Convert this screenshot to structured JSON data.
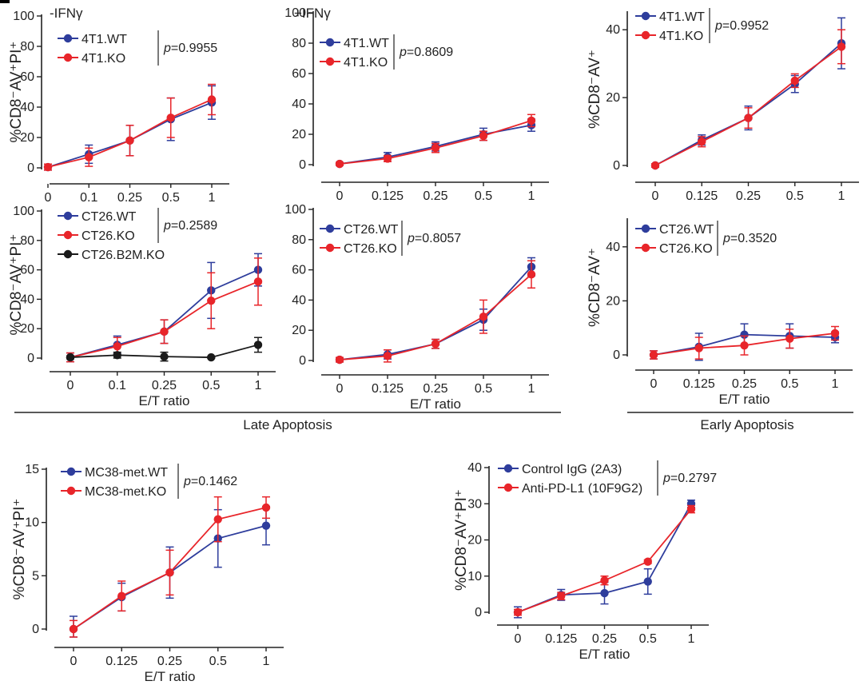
{
  "figure": {
    "group_labels": {
      "late": "Late Apoptosis",
      "early": "Early Apoptosis"
    }
  },
  "colors": {
    "blue": "#2e3d9c",
    "red": "#e8252a",
    "black": "#1a1a1a"
  },
  "chart_data": [
    {
      "id": "p1",
      "type": "line",
      "title": "-IFNγ",
      "ylabel": "%CD8⁻AV⁺PI⁺",
      "categories": [
        "0",
        "0.1",
        "0.25",
        "0.5",
        "1"
      ],
      "ylim": [
        0,
        100
      ],
      "yticks": [
        0,
        20,
        40,
        60,
        80,
        100
      ],
      "pvalue": "=0.9955",
      "xlabel": "",
      "series": [
        {
          "name": "4T1.WT",
          "color": "blue",
          "values": [
            0.5,
            9,
            18,
            32,
            43
          ],
          "err": [
            2,
            6,
            10,
            14,
            11
          ]
        },
        {
          "name": "4T1.KO",
          "color": "red",
          "values": [
            0.5,
            7,
            18,
            33,
            45
          ],
          "err": [
            2,
            6,
            10,
            13,
            10
          ]
        }
      ]
    },
    {
      "id": "p2",
      "type": "line",
      "title": "+IFNγ",
      "ylabel": "",
      "categories": [
        "0",
        "0.125",
        "0.25",
        "0.5",
        "1"
      ],
      "ylim": [
        0,
        100
      ],
      "yticks": [
        0,
        20,
        40,
        60,
        80,
        100
      ],
      "pvalue": "=0.8609",
      "xlabel": "",
      "series": [
        {
          "name": "4T1.WT",
          "color": "blue",
          "values": [
            0.5,
            5,
            12,
            20,
            26
          ],
          "err": [
            1,
            3,
            3,
            4,
            4
          ]
        },
        {
          "name": "4T1.KO",
          "color": "red",
          "values": [
            0.5,
            4,
            11,
            19,
            29
          ],
          "err": [
            1,
            2,
            3,
            3,
            4
          ]
        }
      ]
    },
    {
      "id": "p3",
      "type": "line",
      "title": "",
      "ylabel": "%CD8⁻AV⁺",
      "categories": [
        "0",
        "0.125",
        "0.25",
        "0.5",
        "1"
      ],
      "ylim": [
        0,
        45
      ],
      "yticks": [
        0,
        20,
        40
      ],
      "pvalue": "=0.9952",
      "xlabel": "",
      "series": [
        {
          "name": "4T1.WT",
          "color": "blue",
          "values": [
            0,
            7.5,
            14,
            24,
            36
          ],
          "err": [
            0.5,
            1.5,
            3.5,
            2.5,
            7.5
          ]
        },
        {
          "name": "4T1.KO",
          "color": "red",
          "values": [
            0,
            7,
            14,
            25,
            35
          ],
          "err": [
            0.5,
            1.5,
            3,
            2,
            5
          ]
        }
      ]
    },
    {
      "id": "p4",
      "type": "line",
      "title": "",
      "ylabel": "%CD8⁻AV⁺PI⁺",
      "categories": [
        "0",
        "0.1",
        "0.25",
        "0.5",
        "1"
      ],
      "ylim": [
        0,
        100
      ],
      "yticks": [
        0,
        20,
        40,
        60,
        80,
        100
      ],
      "pvalue": "=0.2589",
      "xlabel": "E/T ratio",
      "series": [
        {
          "name": "CT26.WT",
          "color": "blue",
          "values": [
            0.5,
            9,
            18,
            46,
            60
          ],
          "err": [
            3,
            6,
            8,
            19,
            11
          ]
        },
        {
          "name": "CT26.KO",
          "color": "red",
          "values": [
            0.5,
            8,
            18,
            39,
            52
          ],
          "err": [
            3,
            6,
            8,
            19,
            16
          ]
        },
        {
          "name": "CT26.B2M.KO",
          "color": "black",
          "values": [
            0.5,
            2,
            1,
            0.5,
            9
          ],
          "err": [
            1,
            2,
            3,
            0.5,
            5
          ]
        }
      ]
    },
    {
      "id": "p5",
      "type": "line",
      "title": "",
      "ylabel": "",
      "categories": [
        "0",
        "0.125",
        "0.25",
        "0.5",
        "1"
      ],
      "ylim": [
        0,
        100
      ],
      "yticks": [
        0,
        20,
        40,
        60,
        80,
        100
      ],
      "pvalue": "=0.8057",
      "xlabel": "E/T ratio",
      "series": [
        {
          "name": "CT26.WT",
          "color": "blue",
          "values": [
            0.5,
            4,
            11,
            27,
            62
          ],
          "err": [
            1.5,
            3,
            3,
            7,
            6
          ]
        },
        {
          "name": "CT26.KO",
          "color": "red",
          "values": [
            0.5,
            3,
            11,
            29,
            57
          ],
          "err": [
            1.5,
            4,
            3,
            11,
            9
          ]
        }
      ]
    },
    {
      "id": "p6",
      "type": "line",
      "title": "",
      "ylabel": "%CD8⁻AV⁺",
      "categories": [
        "0",
        "0.125",
        "0.25",
        "0.5",
        "1"
      ],
      "ylim": [
        0,
        50
      ],
      "yticks": [
        0,
        20,
        40
      ],
      "pvalue": "=0.3520",
      "xlabel": "E/T ratio",
      "series": [
        {
          "name": "CT26.WT",
          "color": "blue",
          "values": [
            0,
            3,
            7.5,
            7,
            6.5
          ],
          "err": [
            1.5,
            5,
            4,
            4.5,
            2
          ]
        },
        {
          "name": "CT26.KO",
          "color": "red",
          "values": [
            0,
            2.5,
            3.5,
            6,
            8
          ],
          "err": [
            1.5,
            4,
            3.5,
            3.5,
            2.5
          ]
        }
      ]
    },
    {
      "id": "p7",
      "type": "line",
      "title": "",
      "ylabel": "%CD8⁻AV⁺PI⁺",
      "categories": [
        "0",
        "0.125",
        "0.25",
        "0.5",
        "1"
      ],
      "ylim": [
        0,
        15
      ],
      "yticks": [
        0,
        5,
        10,
        15
      ],
      "pvalue": "=0.1462",
      "xlabel": "E/T ratio",
      "series": [
        {
          "name": "MC38-met.WT",
          "color": "blue",
          "values": [
            0,
            3,
            5.3,
            8.5,
            9.7
          ],
          "err": [
            1.2,
            1.3,
            2.4,
            2.7,
            1.8
          ]
        },
        {
          "name": "MC38-met.KO",
          "color": "red",
          "values": [
            0,
            3.1,
            5.3,
            10.3,
            11.4
          ],
          "err": [
            0.8,
            1.4,
            2.1,
            2.1,
            1
          ]
        }
      ]
    },
    {
      "id": "p8",
      "type": "line",
      "title": "",
      "ylabel": "%CD8⁻AV⁺PI⁺",
      "categories": [
        "0",
        "0.125",
        "0.25",
        "0.5",
        "1"
      ],
      "ylim": [
        0,
        40
      ],
      "yticks": [
        0,
        10,
        20,
        30,
        40
      ],
      "pvalue": "=0.2797",
      "xlabel": "E/T ratio",
      "series": [
        {
          "name": "Control IgG (2A3)",
          "color": "blue",
          "values": [
            0,
            4.8,
            5.3,
            8.5,
            30
          ],
          "err": [
            1.5,
            1.5,
            3,
            3.5,
            1
          ]
        },
        {
          "name": "Anti-PD-L1 (10F9G2)",
          "color": "red",
          "values": [
            0,
            4.5,
            8.8,
            14,
            28.5
          ],
          "err": [
            0.8,
            1,
            1.2,
            0.5,
            1
          ]
        }
      ]
    }
  ]
}
